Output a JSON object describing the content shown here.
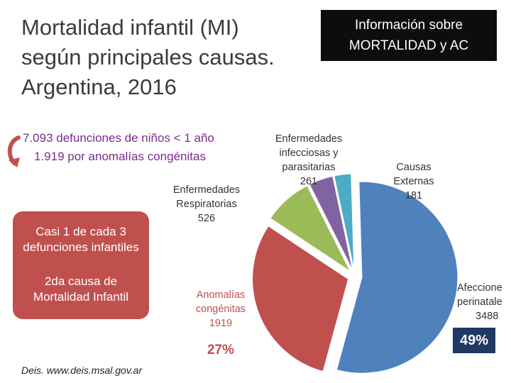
{
  "title": {
    "line1": "Mortalidad infantil (MI)",
    "line2": "según principales causas.",
    "line3": "Argentina, 2016"
  },
  "info_box": {
    "line1": "Información sobre",
    "line2": "MORTALIDAD y AC"
  },
  "stats": {
    "line1": "7.093 defunciones  de niños < 1 año",
    "line2": "1.919 por  anomalías congénitas"
  },
  "red_box": {
    "text1_line1": "Casi 1 de cada 3",
    "text1_line2": "defunciones infantiles",
    "text2_line1": "2da causa de",
    "text2_line2": "Mortalidad Infantil"
  },
  "source": "Deis. www.deis.msal.gov.ar",
  "badges": {
    "afecciones_pct": "49%",
    "anomalias_pct": "27%"
  },
  "colors": {
    "afecciones": "#4f81bd",
    "anomalias": "#c0504d",
    "respiratorias": "#9bbb59",
    "infecciosas": "#8064a2",
    "externas": "#4bacc6",
    "highlight_purple": "#7b2c8f",
    "dark_badge": "#1f3864"
  },
  "chart_data": {
    "type": "pie",
    "title": "",
    "slices": [
      {
        "label_lines": [
          "Afeccione",
          "perinatale",
          "3488"
        ],
        "value": 3488,
        "color": "#4f81bd"
      },
      {
        "label_lines": [
          "Anomalías",
          "congénitas",
          "1919"
        ],
        "value": 1919,
        "color": "#c0504d"
      },
      {
        "label_lines": [
          "Enfermedades",
          "Respiratorias",
          "526"
        ],
        "value": 526,
        "color": "#9bbb59"
      },
      {
        "label_lines": [
          "Enfermedades",
          "infecciosas y",
          "parasitarias",
          "261"
        ],
        "value": 261,
        "color": "#8064a2"
      },
      {
        "label_lines": [
          "Causas",
          "Externas",
          "181"
        ],
        "value": 181,
        "color": "#4bacc6"
      }
    ]
  }
}
